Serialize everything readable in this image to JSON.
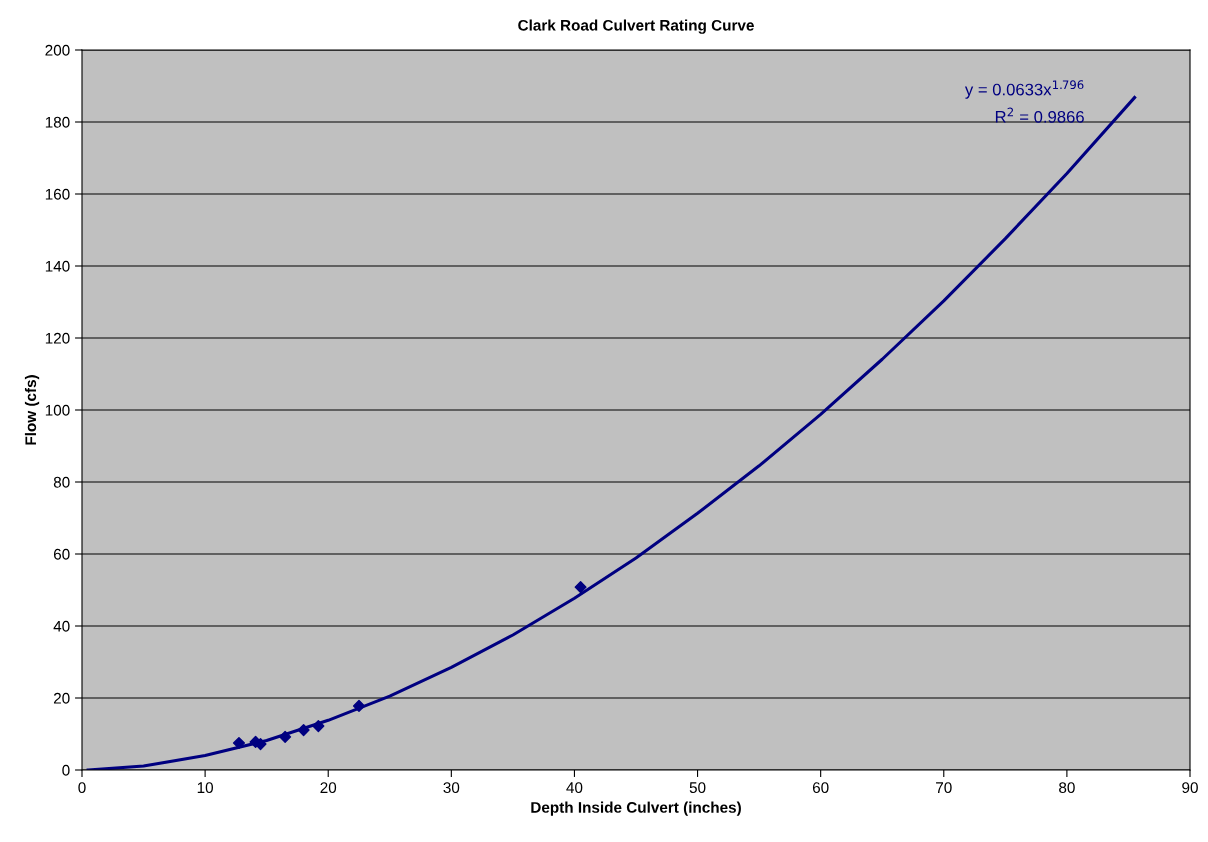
{
  "chart_data": {
    "type": "scatter",
    "title": "Clark Road Culvert Rating Curve",
    "xlabel": "Depth Inside Culvert (inches)",
    "ylabel": "Flow (cfs)",
    "series": [
      {
        "color": "#000080",
        "marker": "diamond",
        "x": [
          12.75,
          14.1,
          14.5,
          16.5,
          18.0,
          19.2,
          22.5,
          40.5
        ],
        "values": [
          7.5,
          7.8,
          7.2,
          9.2,
          11.1,
          12.2,
          17.8,
          50.8
        ]
      },
      {
        "type": "line",
        "color": "#000080",
        "line_style": "solid",
        "x": [
          0.5,
          5,
          10,
          15,
          20,
          25,
          30,
          35,
          40,
          45,
          50,
          55,
          60,
          65,
          70,
          75,
          80,
          85.5
        ],
        "values": [
          0,
          1.1,
          4.0,
          8.2,
          13.8,
          20.5,
          28.5,
          37.5,
          47.7,
          58.9,
          71.3,
          84.5,
          98.8,
          114.1,
          130.3,
          147.6,
          165.7,
          186.8
        ]
      }
    ],
    "annotations": [
      "y = 0.0633x$^{1.796}$",
      "R$^{2}$ = 0.9866"
    ],
    "xlim": [
      0,
      90
    ],
    "xticks": [
      0,
      10,
      20,
      30,
      40,
      50,
      60,
      70,
      80,
      90
    ],
    "ylim": [
      0,
      200
    ],
    "yticks": [
      0,
      20,
      40,
      60,
      80,
      100,
      120,
      140,
      160,
      180,
      200
    ],
    "grid": "y",
    "legend": false
  }
}
